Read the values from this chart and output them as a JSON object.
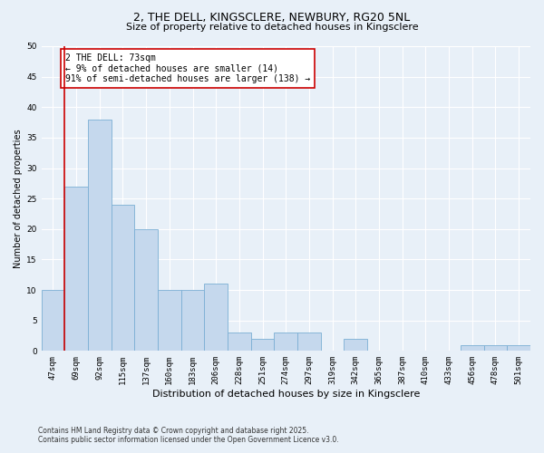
{
  "title_line1": "2, THE DELL, KINGSCLERE, NEWBURY, RG20 5NL",
  "title_line2": "Size of property relative to detached houses in Kingsclere",
  "xlabel": "Distribution of detached houses by size in Kingsclere",
  "ylabel": "Number of detached properties",
  "categories": [
    "47sqm",
    "69sqm",
    "92sqm",
    "115sqm",
    "137sqm",
    "160sqm",
    "183sqm",
    "206sqm",
    "228sqm",
    "251sqm",
    "274sqm",
    "297sqm",
    "319sqm",
    "342sqm",
    "365sqm",
    "387sqm",
    "410sqm",
    "433sqm",
    "456sqm",
    "478sqm",
    "501sqm"
  ],
  "values": [
    10,
    27,
    38,
    24,
    20,
    10,
    10,
    11,
    3,
    2,
    3,
    3,
    0,
    2,
    0,
    0,
    0,
    0,
    1,
    1,
    1
  ],
  "bar_color": "#c5d8ed",
  "bar_edge_color": "#7bafd4",
  "background_color": "#e8f0f8",
  "grid_color": "#ffffff",
  "ylim": [
    0,
    50
  ],
  "yticks": [
    0,
    5,
    10,
    15,
    20,
    25,
    30,
    35,
    40,
    45,
    50
  ],
  "red_line_index": 1,
  "annotation_text": "2 THE DELL: 73sqm\n← 9% of detached houses are smaller (14)\n91% of semi-detached houses are larger (138) →",
  "annotation_box_color": "#ffffff",
  "annotation_box_edge": "#cc0000",
  "red_line_color": "#cc0000",
  "title1_fontsize": 9,
  "title2_fontsize": 8,
  "ylabel_fontsize": 7,
  "xlabel_fontsize": 8,
  "tick_fontsize": 6.5,
  "annotation_fontsize": 7,
  "footnote1": "Contains HM Land Registry data © Crown copyright and database right 2025.",
  "footnote2": "Contains public sector information licensed under the Open Government Licence v3.0."
}
